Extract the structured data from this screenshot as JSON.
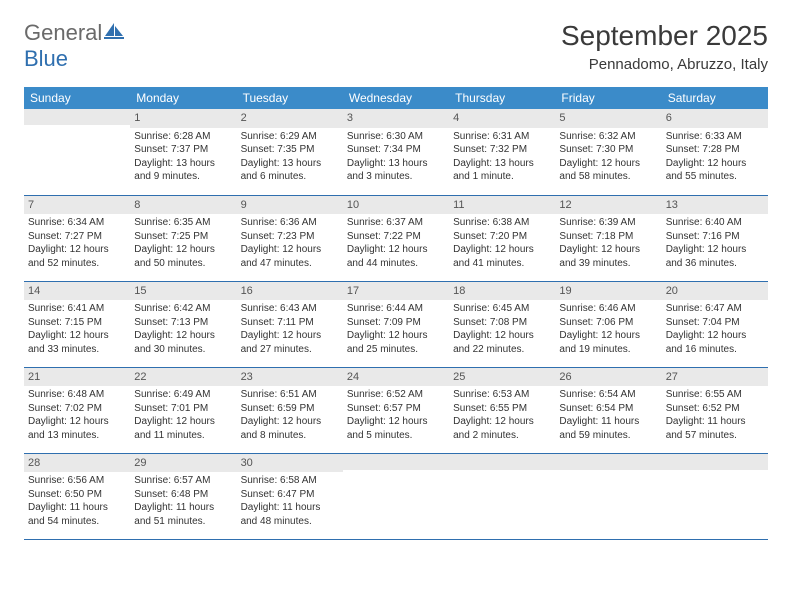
{
  "logo": {
    "gray": "General",
    "blue": "Blue"
  },
  "title": "September 2025",
  "location": "Pennadomo, Abruzzo, Italy",
  "colors": {
    "header_bg": "#3b8bc9",
    "header_fg": "#ffffff",
    "daynum_bg": "#e9e9e9",
    "border": "#2f6faf",
    "text": "#333333",
    "logo_gray": "#6a6a6a",
    "logo_blue": "#2f6faf"
  },
  "weekdays": [
    "Sunday",
    "Monday",
    "Tuesday",
    "Wednesday",
    "Thursday",
    "Friday",
    "Saturday"
  ],
  "weeks": [
    [
      null,
      {
        "n": "1",
        "sr": "6:28 AM",
        "ss": "7:37 PM",
        "dl": "13 hours and 9 minutes."
      },
      {
        "n": "2",
        "sr": "6:29 AM",
        "ss": "7:35 PM",
        "dl": "13 hours and 6 minutes."
      },
      {
        "n": "3",
        "sr": "6:30 AM",
        "ss": "7:34 PM",
        "dl": "13 hours and 3 minutes."
      },
      {
        "n": "4",
        "sr": "6:31 AM",
        "ss": "7:32 PM",
        "dl": "13 hours and 1 minute."
      },
      {
        "n": "5",
        "sr": "6:32 AM",
        "ss": "7:30 PM",
        "dl": "12 hours and 58 minutes."
      },
      {
        "n": "6",
        "sr": "6:33 AM",
        "ss": "7:28 PM",
        "dl": "12 hours and 55 minutes."
      }
    ],
    [
      {
        "n": "7",
        "sr": "6:34 AM",
        "ss": "7:27 PM",
        "dl": "12 hours and 52 minutes."
      },
      {
        "n": "8",
        "sr": "6:35 AM",
        "ss": "7:25 PM",
        "dl": "12 hours and 50 minutes."
      },
      {
        "n": "9",
        "sr": "6:36 AM",
        "ss": "7:23 PM",
        "dl": "12 hours and 47 minutes."
      },
      {
        "n": "10",
        "sr": "6:37 AM",
        "ss": "7:22 PM",
        "dl": "12 hours and 44 minutes."
      },
      {
        "n": "11",
        "sr": "6:38 AM",
        "ss": "7:20 PM",
        "dl": "12 hours and 41 minutes."
      },
      {
        "n": "12",
        "sr": "6:39 AM",
        "ss": "7:18 PM",
        "dl": "12 hours and 39 minutes."
      },
      {
        "n": "13",
        "sr": "6:40 AM",
        "ss": "7:16 PM",
        "dl": "12 hours and 36 minutes."
      }
    ],
    [
      {
        "n": "14",
        "sr": "6:41 AM",
        "ss": "7:15 PM",
        "dl": "12 hours and 33 minutes."
      },
      {
        "n": "15",
        "sr": "6:42 AM",
        "ss": "7:13 PM",
        "dl": "12 hours and 30 minutes."
      },
      {
        "n": "16",
        "sr": "6:43 AM",
        "ss": "7:11 PM",
        "dl": "12 hours and 27 minutes."
      },
      {
        "n": "17",
        "sr": "6:44 AM",
        "ss": "7:09 PM",
        "dl": "12 hours and 25 minutes."
      },
      {
        "n": "18",
        "sr": "6:45 AM",
        "ss": "7:08 PM",
        "dl": "12 hours and 22 minutes."
      },
      {
        "n": "19",
        "sr": "6:46 AM",
        "ss": "7:06 PM",
        "dl": "12 hours and 19 minutes."
      },
      {
        "n": "20",
        "sr": "6:47 AM",
        "ss": "7:04 PM",
        "dl": "12 hours and 16 minutes."
      }
    ],
    [
      {
        "n": "21",
        "sr": "6:48 AM",
        "ss": "7:02 PM",
        "dl": "12 hours and 13 minutes."
      },
      {
        "n": "22",
        "sr": "6:49 AM",
        "ss": "7:01 PM",
        "dl": "12 hours and 11 minutes."
      },
      {
        "n": "23",
        "sr": "6:51 AM",
        "ss": "6:59 PM",
        "dl": "12 hours and 8 minutes."
      },
      {
        "n": "24",
        "sr": "6:52 AM",
        "ss": "6:57 PM",
        "dl": "12 hours and 5 minutes."
      },
      {
        "n": "25",
        "sr": "6:53 AM",
        "ss": "6:55 PM",
        "dl": "12 hours and 2 minutes."
      },
      {
        "n": "26",
        "sr": "6:54 AM",
        "ss": "6:54 PM",
        "dl": "11 hours and 59 minutes."
      },
      {
        "n": "27",
        "sr": "6:55 AM",
        "ss": "6:52 PM",
        "dl": "11 hours and 57 minutes."
      }
    ],
    [
      {
        "n": "28",
        "sr": "6:56 AM",
        "ss": "6:50 PM",
        "dl": "11 hours and 54 minutes."
      },
      {
        "n": "29",
        "sr": "6:57 AM",
        "ss": "6:48 PM",
        "dl": "11 hours and 51 minutes."
      },
      {
        "n": "30",
        "sr": "6:58 AM",
        "ss": "6:47 PM",
        "dl": "11 hours and 48 minutes."
      },
      null,
      null,
      null,
      null
    ]
  ],
  "labels": {
    "sunrise": "Sunrise:",
    "sunset": "Sunset:",
    "daylight": "Daylight:"
  }
}
